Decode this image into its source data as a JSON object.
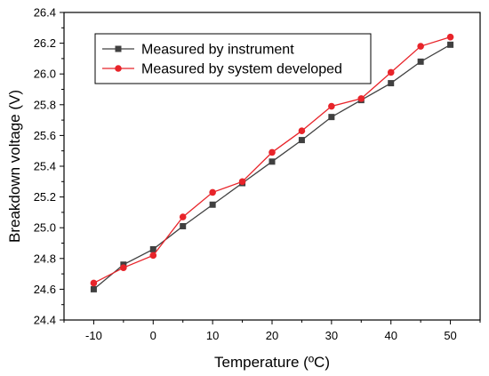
{
  "chart_data": {
    "type": "line",
    "title": "",
    "xlabel": "Temperature (ºC)",
    "ylabel": "Breakdown voltage (V)",
    "xlim": [
      -15,
      55
    ],
    "ylim": [
      24.4,
      26.4
    ],
    "x_ticks": [
      -10,
      0,
      10,
      20,
      30,
      40,
      50
    ],
    "x_tick_labels": [
      "-10",
      "0",
      "10",
      "20",
      "30",
      "40",
      "50"
    ],
    "y_ticks": [
      24.4,
      24.6,
      24.8,
      25.0,
      25.2,
      25.4,
      25.6,
      25.8,
      26.0,
      26.2,
      26.4
    ],
    "y_tick_labels": [
      "24.4",
      "24.6",
      "24.8",
      "25.0",
      "25.2",
      "25.4",
      "25.6",
      "25.8",
      "26.0",
      "26.2",
      "26.4"
    ],
    "grid": false,
    "legend_position": "top-left",
    "x": [
      -10,
      -5,
      0,
      5,
      10,
      15,
      20,
      25,
      30,
      35,
      40,
      45,
      50
    ],
    "series": [
      {
        "name": "Measured by instrument",
        "marker": "square",
        "color": "#404040",
        "values": [
          24.6,
          24.76,
          24.86,
          25.01,
          25.15,
          25.29,
          25.43,
          25.57,
          25.72,
          25.83,
          25.94,
          26.08,
          26.19
        ]
      },
      {
        "name": "Measured by system developed",
        "marker": "circle",
        "color": "#e8242a",
        "values": [
          24.64,
          24.74,
          24.82,
          25.07,
          25.23,
          25.3,
          25.49,
          25.63,
          25.79,
          25.84,
          26.01,
          26.18,
          26.24
        ]
      }
    ]
  }
}
